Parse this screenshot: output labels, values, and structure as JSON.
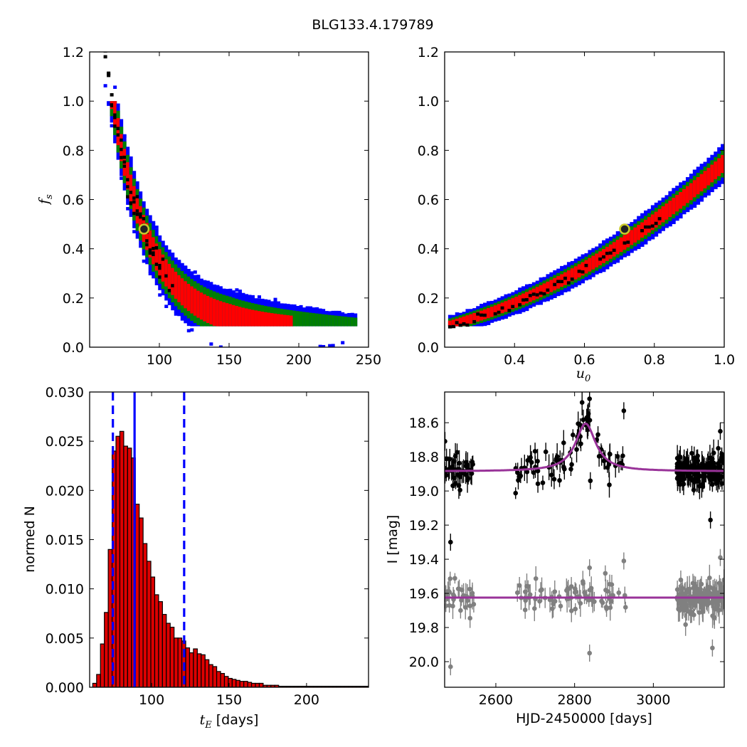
{
  "title": "BLG133.4.179789",
  "colors": {
    "level1": "#000000",
    "level2": "#ff0000",
    "level3": "#008000",
    "level4": "#0000ff",
    "best_fill": "#222222",
    "best_edge": "#c9c92a",
    "hist_fill": "#dd0000",
    "hist_edge": "#000000",
    "vline": "#0000ff",
    "model": "#993399",
    "data_top": "#000000",
    "data_bottom": "#808080"
  },
  "chart_data": [
    {
      "id": "tE-fs",
      "type": "heatmap",
      "xlabel": "",
      "ylabel_text": "f",
      "ylabel_sub": "s",
      "xlim": [
        50,
        250
      ],
      "ylim": [
        0.0,
        1.2
      ],
      "xticks": [
        "100",
        "150",
        "200",
        "250"
      ],
      "yticks": [
        "0.0",
        "0.2",
        "0.4",
        "0.6",
        "0.8",
        "1.0",
        "1.2"
      ],
      "best_fit": {
        "x": 89,
        "y": 0.48
      },
      "band": {
        "x_start": 60,
        "x_end": 240,
        "x_step": 2.3,
        "curve": "fs = 0.08 + 0.93 * exp(-(tE - 65)/27)",
        "widths": {
          "level2": 0.055,
          "level3": 0.085,
          "level4": 0.11
        }
      }
    },
    {
      "id": "u0-fs",
      "type": "heatmap",
      "xlabel_text": "u",
      "xlabel_sub": "0",
      "ylabel": "",
      "xlim": [
        0.2,
        1.0
      ],
      "ylim": [
        0.0,
        1.2
      ],
      "xticks": [
        "0.4",
        "0.6",
        "0.8",
        "1.0"
      ],
      "yticks": [
        "0.0",
        "0.2",
        "0.4",
        "0.6",
        "0.8",
        "1.0",
        "1.2"
      ],
      "best_fit": {
        "x": 0.715,
        "y": 0.48
      },
      "band": {
        "x_start": 0.21,
        "x_end": 1.0,
        "x_step": 0.01,
        "curve": "fs = 0.09 + 0.375*(u0-0.21) + 0.595*(u0-0.21)^2",
        "widths": {
          "level2": 0.03,
          "level3": 0.045,
          "level4": 0.06
        }
      }
    },
    {
      "id": "tE-hist",
      "type": "bar",
      "xlabel_text": "t",
      "xlabel_sub": "E",
      "xlabel_unit": " [days]",
      "ylabel": "normed N",
      "xlim": [
        60,
        240
      ],
      "ylim": [
        0.0,
        0.03
      ],
      "xticks": [
        "100",
        "150",
        "200"
      ],
      "yticks": [
        "0.000",
        "0.005",
        "0.010",
        "0.015",
        "0.020",
        "0.025",
        "0.030"
      ],
      "bin_start": 62,
      "bin_width": 2.5,
      "values": [
        0.0004,
        0.0013,
        0.0044,
        0.0076,
        0.014,
        0.024,
        0.0255,
        0.026,
        0.0245,
        0.0243,
        0.0233,
        0.0186,
        0.0172,
        0.0146,
        0.0128,
        0.0112,
        0.0094,
        0.0087,
        0.0074,
        0.0065,
        0.0061,
        0.005,
        0.005,
        0.0047,
        0.004,
        0.0035,
        0.0039,
        0.0034,
        0.0033,
        0.0028,
        0.0023,
        0.0021,
        0.0016,
        0.0014,
        0.0011,
        0.0009,
        0.0008,
        0.0007,
        0.0006,
        0.0006,
        0.0005,
        0.0004,
        0.0004,
        0.0004,
        0.0002,
        0.0002,
        0.0002,
        0.0002,
        0.0001,
        0.0001,
        0.0001,
        0.0001,
        0.0001,
        0.0001,
        0.0001,
        0.0001,
        0.0001,
        0.0001,
        0.0001,
        0.0001,
        0.0001,
        0.0001,
        0.0001,
        0.0001,
        0.0001,
        0.0001,
        0.0001,
        0.0001,
        0.0001,
        0.0001,
        0.0001
      ],
      "median": 89,
      "bounds": [
        75,
        121
      ]
    },
    {
      "id": "lightcurve",
      "type": "scatter",
      "xlabel": "HJD-2450000 [days]",
      "ylabel": "I [mag]",
      "xlim": [
        2470,
        3180
      ],
      "ylim": [
        20.15,
        18.42
      ],
      "xticks": [
        "2600",
        "2800",
        "3000"
      ],
      "yticks": [
        "18.6",
        "18.8",
        "19.0",
        "19.2",
        "19.4",
        "19.6",
        "19.8",
        "20.0"
      ],
      "model_top": {
        "t0": 2828,
        "peak": 18.605,
        "base": 18.885,
        "tE_days": 57
      },
      "model_bottom": {
        "baseline": 19.625
      },
      "series_top_segments": [
        [
          2470,
          2545,
          40
        ],
        [
          2650,
          2930,
          75
        ],
        [
          3060,
          3180,
          160
        ]
      ],
      "series_bottom_segments": [
        [
          2470,
          2545,
          30
        ],
        [
          2650,
          2930,
          70
        ],
        [
          3060,
          3180,
          150
        ]
      ]
    }
  ]
}
